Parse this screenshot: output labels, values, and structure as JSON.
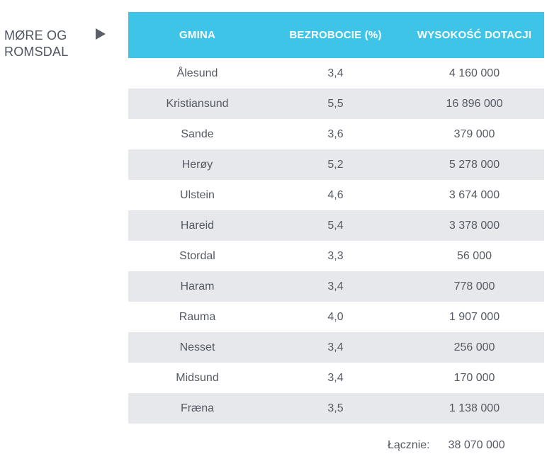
{
  "region": {
    "line1": "MØRE OG",
    "line2": "ROMSDAL"
  },
  "table": {
    "headers": [
      "GMINA",
      "BEZROBOCIE (%)",
      "WYSOKOŚĆ DOTACJI"
    ],
    "rows": [
      [
        "Ålesund",
        "3,4",
        "4 160 000"
      ],
      [
        "Kristiansund",
        "5,5",
        "16 896 000"
      ],
      [
        "Sande",
        "3,6",
        "379 000"
      ],
      [
        "Herøy",
        "5,2",
        "5 278 000"
      ],
      [
        "Ulstein",
        "4,6",
        "3 674 000"
      ],
      [
        "Hareid",
        "5,4",
        "3 378 000"
      ],
      [
        "Stordal",
        "3,3",
        "56 000"
      ],
      [
        "Haram",
        "3,4",
        "778 000"
      ],
      [
        "Rauma",
        "4,0",
        "1 907 000"
      ],
      [
        "Nesset",
        "3,4",
        "256 000"
      ],
      [
        "Midsund",
        "3,4",
        "170 000"
      ],
      [
        "Fræna",
        "3,5",
        "1 138 000"
      ]
    ]
  },
  "total": {
    "label": "Łącznie:",
    "value": "38 070 000"
  },
  "colors": {
    "header_bg": "#3ec4e6",
    "stripe_bg": "#e6e8ec"
  },
  "icons": {
    "pointer": "triangle-right-icon"
  }
}
